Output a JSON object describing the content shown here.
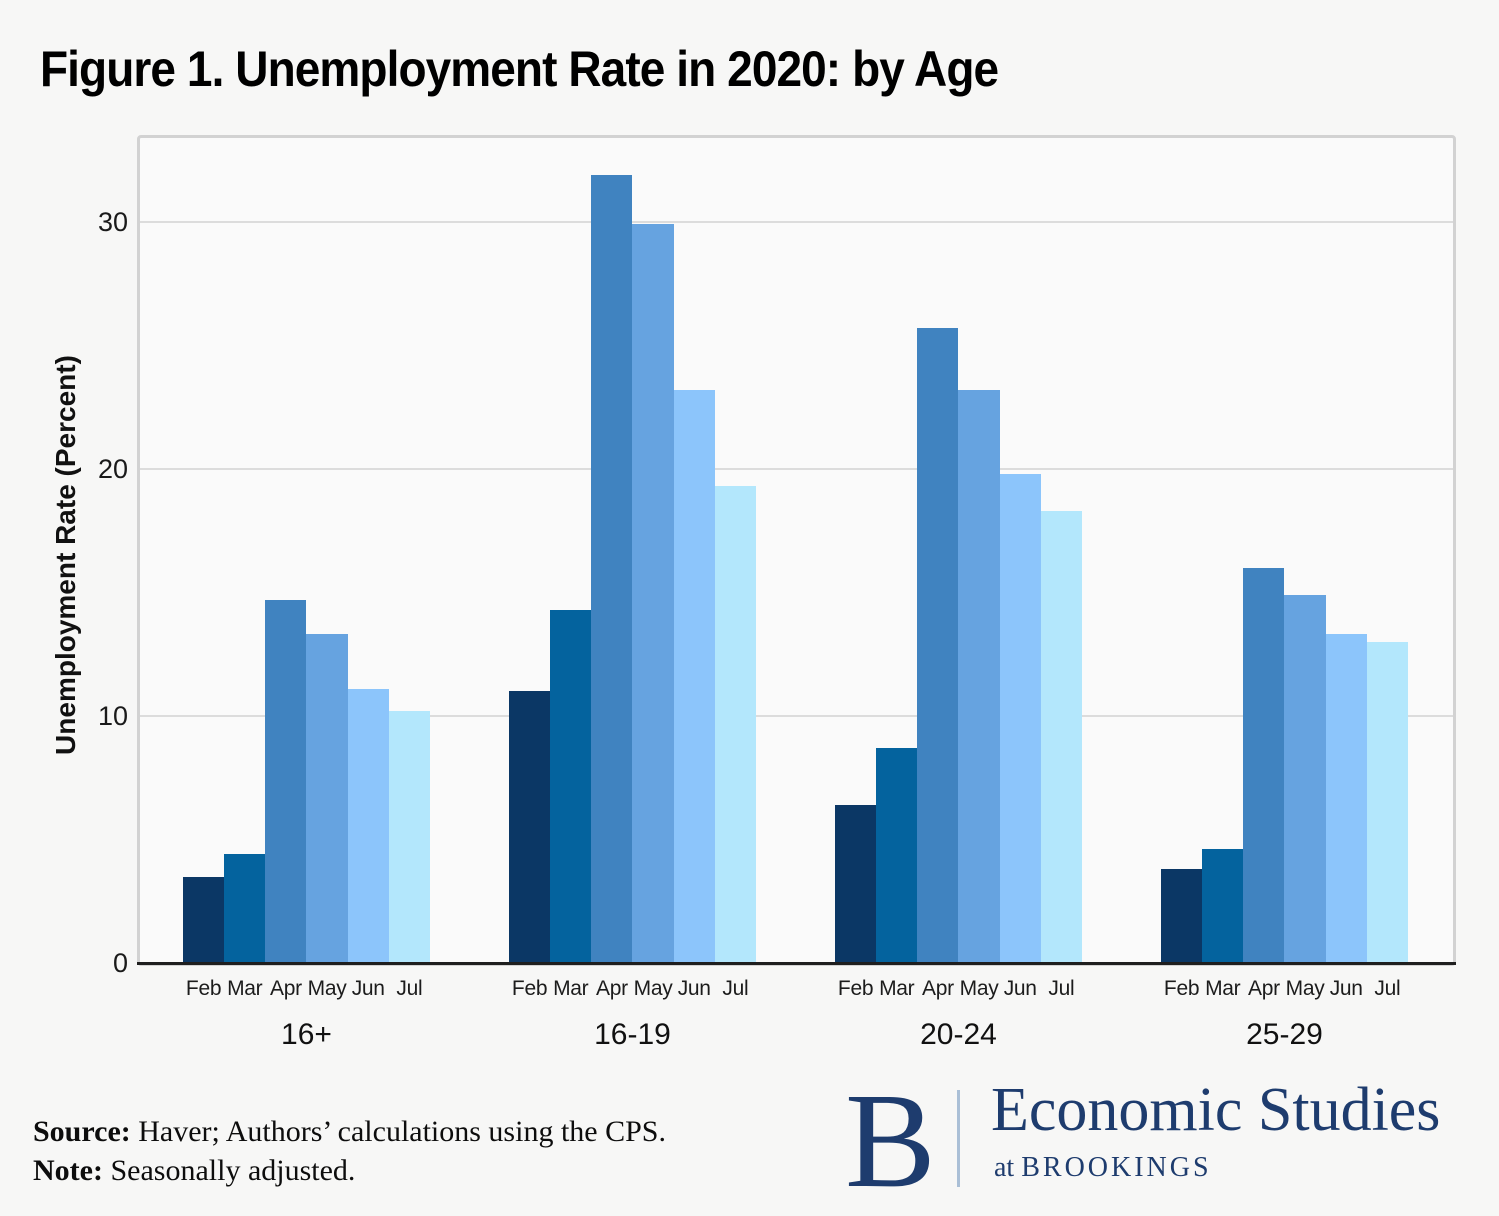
{
  "title": "Figure 1. Unemployment Rate in 2020: by Age",
  "chart_data": {
    "type": "bar",
    "title": "Figure 1. Unemployment Rate in 2020: by Age",
    "xlabel": "",
    "ylabel": "Unemployment Rate (Percent)",
    "ylim": [
      0,
      33.4
    ],
    "yticks": [
      0,
      10,
      20,
      30
    ],
    "grid": "horizontal gridlines at 10, 20, 30",
    "legend": "none (months labeled under each bar)",
    "categories": [
      "16+",
      "16-19",
      "20-24",
      "25-29"
    ],
    "months": [
      "Feb",
      "Mar",
      "Apr",
      "May",
      "Jun",
      "Jul"
    ],
    "series": [
      {
        "name": "Feb",
        "color": "#0b3765",
        "values": [
          3.5,
          11.0,
          6.4,
          3.8
        ]
      },
      {
        "name": "Mar",
        "color": "#04639e",
        "values": [
          4.4,
          14.3,
          8.7,
          4.6
        ]
      },
      {
        "name": "Apr",
        "color": "#4083c0",
        "values": [
          14.7,
          31.9,
          25.7,
          16.0
        ]
      },
      {
        "name": "May",
        "color": "#66a3e0",
        "values": [
          13.3,
          29.9,
          23.2,
          14.9
        ]
      },
      {
        "name": "Jun",
        "color": "#8cc5fb",
        "values": [
          11.1,
          23.2,
          19.8,
          13.3
        ]
      },
      {
        "name": "Jul",
        "color": "#b3e7fc",
        "values": [
          10.2,
          19.3,
          18.3,
          13.0
        ]
      }
    ]
  },
  "footer": {
    "source_label": "Source:",
    "source_text": " Haver; Authors’ calculations using the CPS.",
    "note_label": "Note:",
    "note_text": " Seasonally adjusted."
  },
  "logo": {
    "b": "B",
    "line1": "Economic Studies",
    "line2_prefix": "at ",
    "line2": "BROOKINGS",
    "navy": "#1e3c6e",
    "divider_color": "#aabfd6"
  }
}
